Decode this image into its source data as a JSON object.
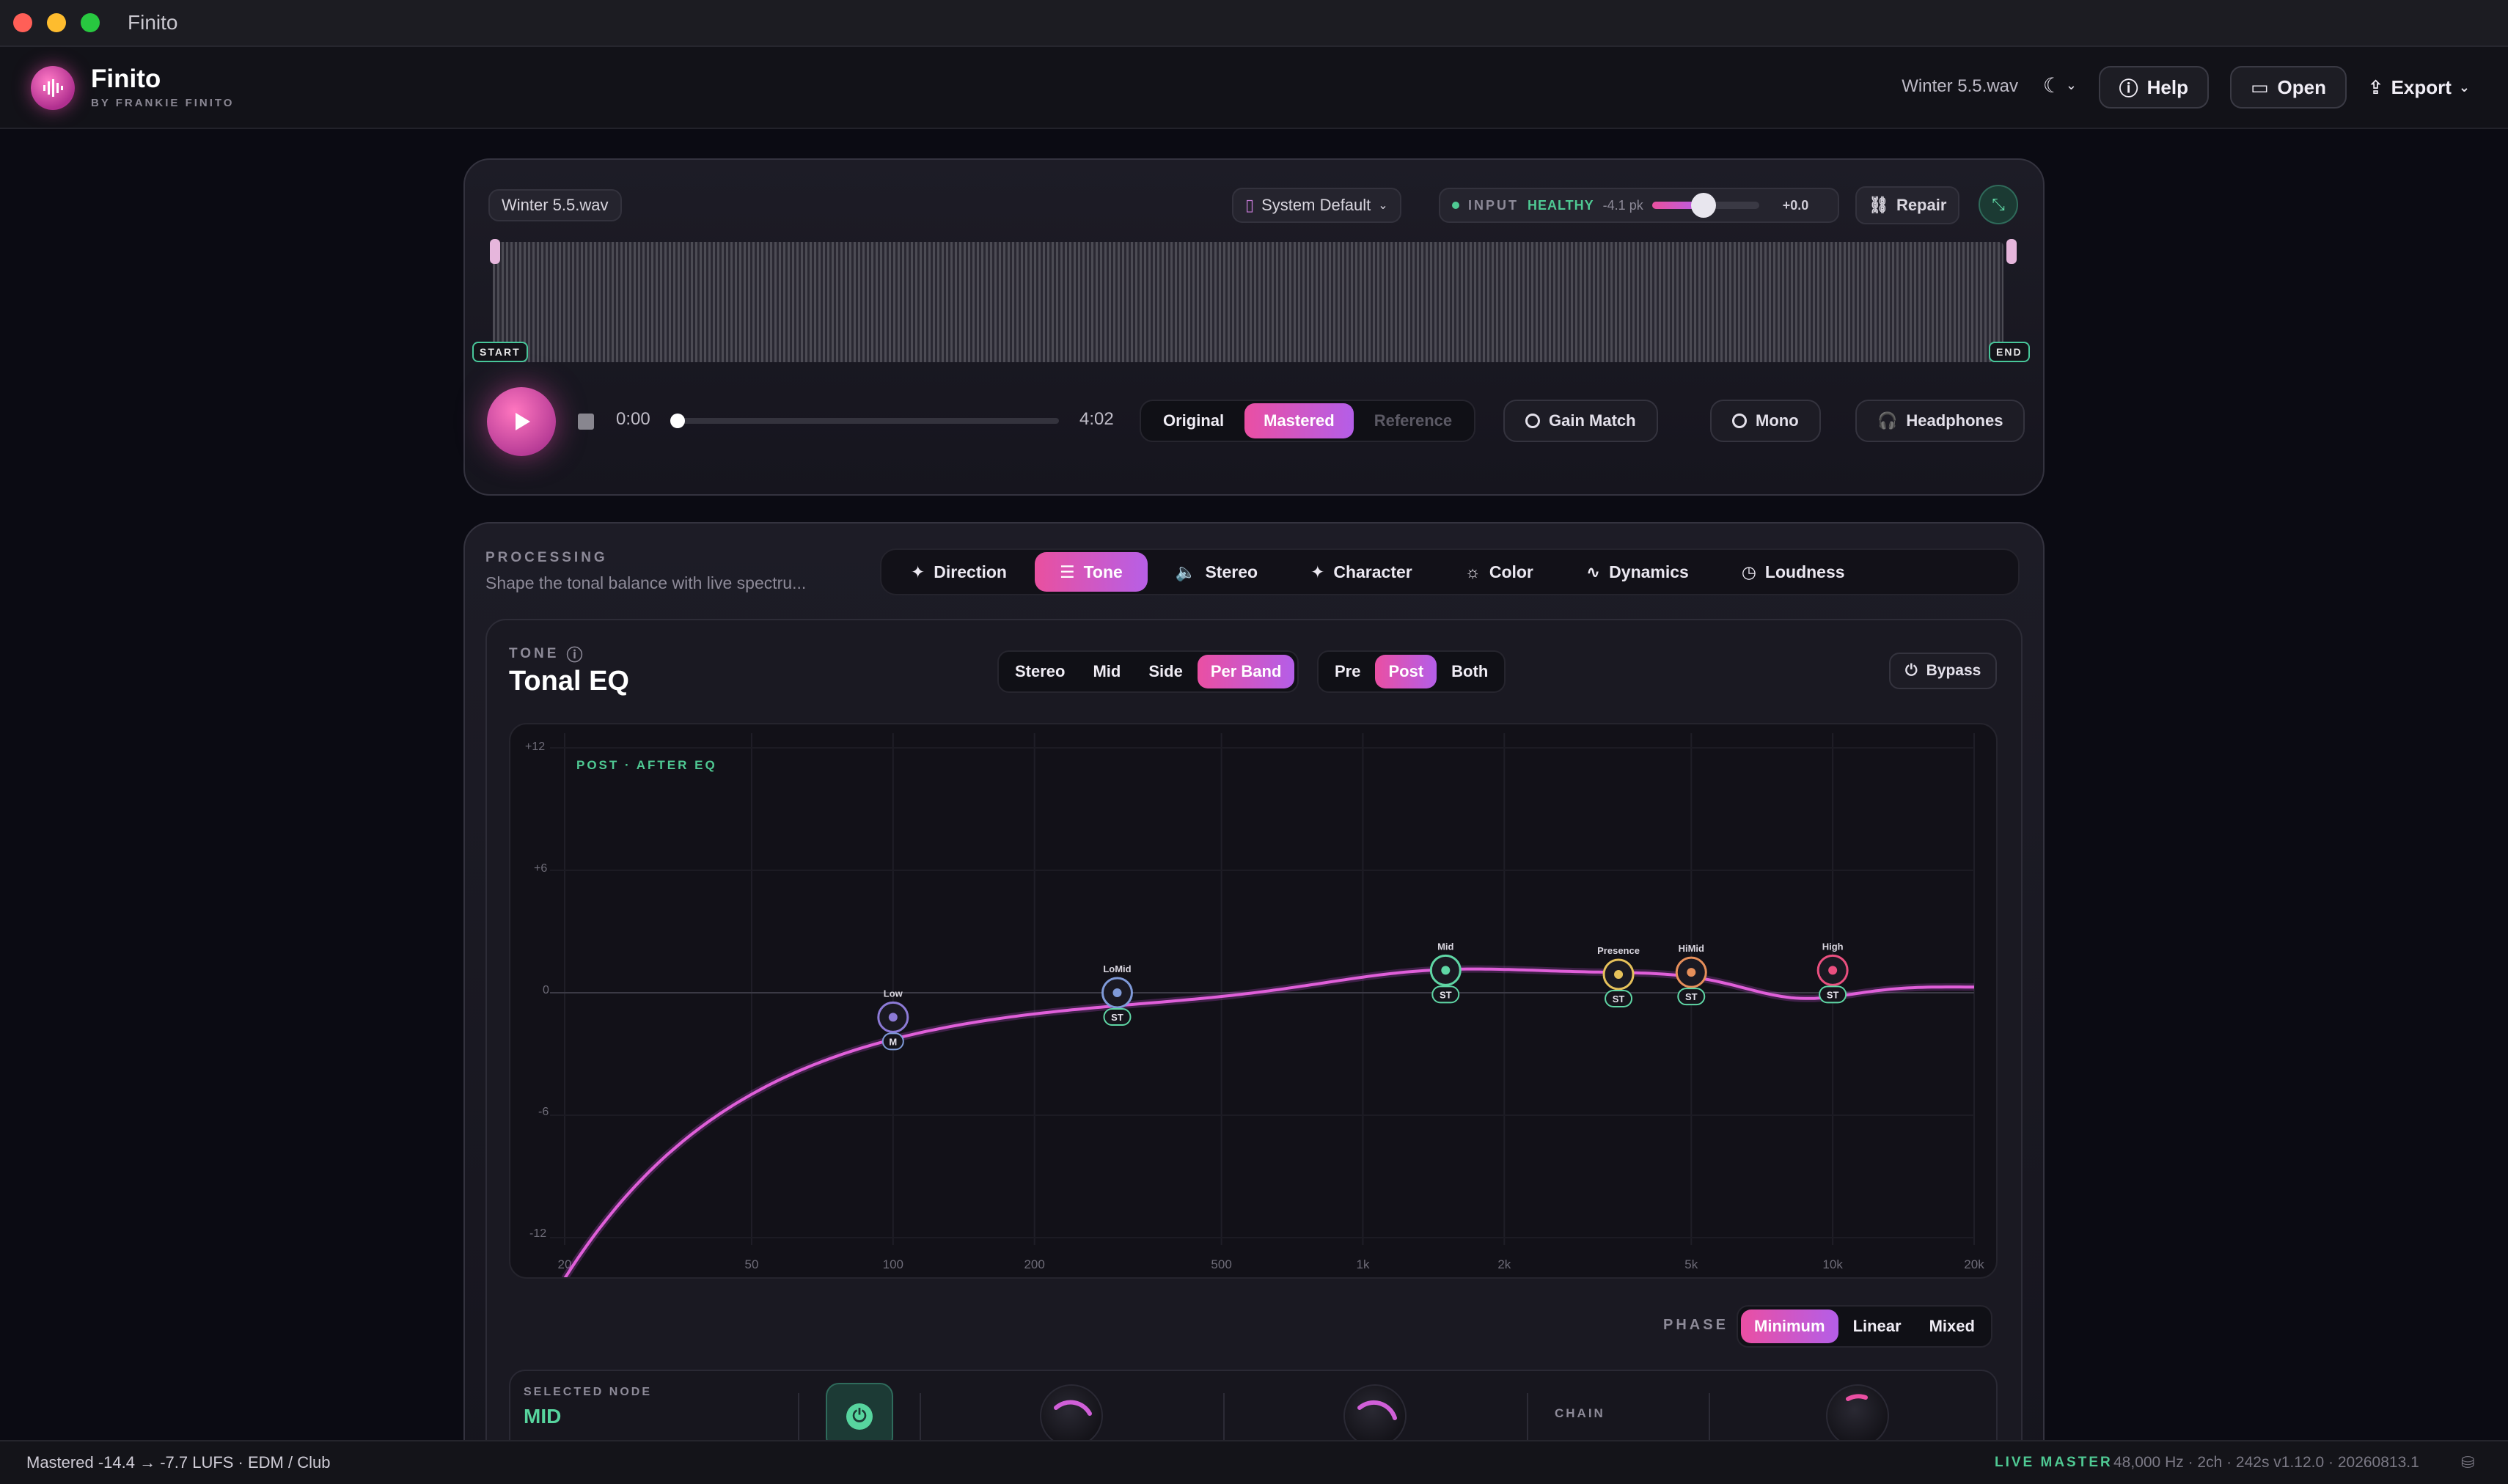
{
  "window": {
    "title": "Finito"
  },
  "header": {
    "brand_name": "Finito",
    "brand_sub": "BY FRANKIE FINITO",
    "file_name": "Winter 5.5.wav",
    "help_label": "Help",
    "open_label": "Open",
    "export_label": "Export"
  },
  "player": {
    "file_chip": "Winter 5.5.wav",
    "device": "System Default",
    "input_label": "INPUT",
    "input_status": "HEALTHY",
    "input_peak": "-4.1 pk",
    "input_gain": "+0.0",
    "input_gain_level": 0.48,
    "repair_label": "Repair",
    "start_marker": "START",
    "end_marker": "END",
    "time_current": "0:00",
    "time_total": "4:02",
    "progress": 0.0,
    "ab_options": [
      "Original",
      "Mastered",
      "Reference"
    ],
    "ab_selected": "Mastered",
    "gain_match_label": "Gain Match",
    "mono_label": "Mono",
    "headphones_label": "Headphones"
  },
  "processing": {
    "label": "PROCESSING",
    "description": "Shape the tonal balance with live spectru...",
    "tabs": [
      "Direction",
      "Tone",
      "Stereo",
      "Character",
      "Color",
      "Dynamics",
      "Loudness"
    ],
    "active_tab": "Tone"
  },
  "tone": {
    "label": "TONE",
    "title": "Tonal EQ",
    "channel_options": [
      "Stereo",
      "Mid",
      "Side",
      "Per Band"
    ],
    "channel_selected": "Per Band",
    "stage_options": [
      "Pre",
      "Post",
      "Both"
    ],
    "stage_selected": "Post",
    "bypass_label": "Bypass",
    "eq_caption": "POST · AFTER EQ",
    "y_ticks": [
      "+12",
      "+6",
      "0",
      "-6",
      "-12"
    ],
    "x_ticks": [
      "20",
      "50",
      "100",
      "200",
      "500",
      "1k",
      "2k",
      "5k",
      "10k",
      "20k"
    ],
    "nodes": [
      {
        "name": "Low",
        "tag": "M",
        "freq": 100,
        "gain": -1.2
      },
      {
        "name": "LoMid",
        "tag": "ST",
        "freq": 300,
        "gain": 0.0
      },
      {
        "name": "Mid",
        "tag": "ST",
        "freq": 1500,
        "gain": 1.1
      },
      {
        "name": "Presence",
        "tag": "ST",
        "freq": 3500,
        "gain": 0.9
      },
      {
        "name": "HiMid",
        "tag": "ST",
        "freq": 5000,
        "gain": 1.0
      },
      {
        "name": "High",
        "tag": "ST",
        "freq": 10000,
        "gain": 1.1
      }
    ],
    "phase_label": "PHASE",
    "phase_options": [
      "Minimum",
      "Linear",
      "Mixed"
    ],
    "phase_selected": "Minimum",
    "selected_node_label": "SELECTED NODE",
    "selected_node_value": "MID",
    "chain_label": "CHAIN"
  },
  "status": {
    "left": "Mastered  -14.4 → -7.7 LUFS · EDM / Club",
    "live": "LIVE MASTER",
    "right": "48,000 Hz · 2ch · 242s   v1.12.0 · 20260813.1"
  },
  "colors": {
    "accent_pink": "#ea4fa3",
    "accent_purple": "#b45ee8",
    "healthy_green": "#4fc993"
  }
}
